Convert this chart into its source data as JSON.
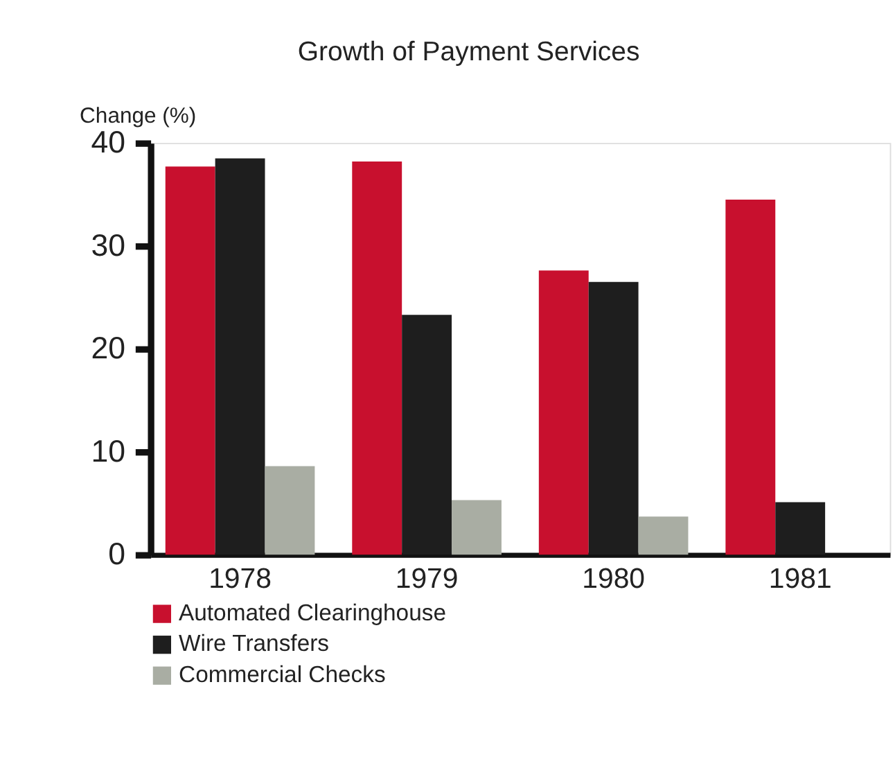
{
  "chart_data": {
    "type": "bar",
    "title": "Growth of Payment Services",
    "ylabel": "Change (%)",
    "categories": [
      "1978",
      "1979",
      "1980",
      "1981"
    ],
    "series": [
      {
        "name": "Automated Clearinghouse",
        "color": "#c8102e",
        "values": [
          37.7,
          38.2,
          27.6,
          34.5
        ]
      },
      {
        "name": "Wire Transfers",
        "color": "#1e1e1e",
        "values": [
          38.5,
          23.3,
          26.5,
          5.1
        ]
      },
      {
        "name": "Commercial Checks",
        "color": "#a9ada3",
        "values": [
          8.6,
          5.3,
          3.7,
          0
        ]
      }
    ],
    "ylim": [
      0,
      40
    ],
    "yticks": [
      0,
      10,
      20,
      30,
      40
    ],
    "grid": false,
    "legend": "bottom"
  }
}
